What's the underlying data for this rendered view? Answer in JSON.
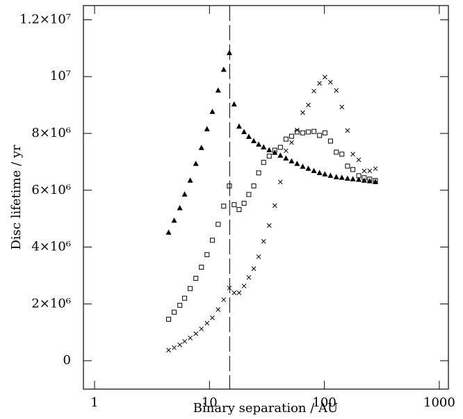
{
  "chart_data": {
    "type": "scatter",
    "xlabel": "Binary separation / AU",
    "ylabel": "Disc lifetime / yr",
    "xscale": "log",
    "xlim": [
      0.8,
      1200
    ],
    "ylim": [
      -1000000,
      12500000
    ],
    "xticks": [
      1,
      10,
      100,
      1000
    ],
    "yticks": [
      0,
      {
        "value": 2000000,
        "label": "2×10⁶"
      },
      {
        "value": 4000000,
        "label": "4×10⁶"
      },
      {
        "value": 6000000,
        "label": "6×10⁶"
      },
      {
        "value": 8000000,
        "label": "8×10⁶"
      },
      {
        "value": 10000000,
        "label": "10⁷"
      },
      {
        "value": 12000000,
        "label": "1.2×10⁷"
      }
    ],
    "vline": 15,
    "x": [
      4.41,
      4.93,
      5.52,
      6.08,
      6.8,
      7.61,
      8.51,
      9.52,
      10.6,
      11.9,
      13.3,
      14.9,
      16.4,
      18.1,
      20.0,
      22.0,
      24.3,
      26.8,
      29.6,
      33.1,
      37.0,
      41.4,
      46.3,
      51.8,
      57.9,
      64.8,
      72.5,
      81.1,
      90.7,
      101,
      113,
      127,
      142,
      159,
      177,
      199,
      222,
      248,
      278
    ],
    "series": [
      {
        "marker": "triangle",
        "color": "#000000",
        "values": [
          4510000,
          4930000,
          5370000,
          5850000,
          6340000,
          6930000,
          7490000,
          8150000,
          8760000,
          9510000,
          10240000,
          10830000,
          9020000,
          8240000,
          8050000,
          7880000,
          7730000,
          7610000,
          7510000,
          7410000,
          7320000,
          7220000,
          7120000,
          7020000,
          6930000,
          6830000,
          6760000,
          6680000,
          6610000,
          6560000,
          6510000,
          6460000,
          6440000,
          6410000,
          6390000,
          6370000,
          6340000,
          6320000,
          6290000
        ]
      },
      {
        "marker": "square",
        "color": "#000000",
        "values": [
          1460000,
          1710000,
          1950000,
          2200000,
          2540000,
          2900000,
          3290000,
          3730000,
          4240000,
          4800000,
          5440000,
          6150000,
          5490000,
          5320000,
          5540000,
          5850000,
          6150000,
          6610000,
          6980000,
          7200000,
          7410000,
          7510000,
          7800000,
          7900000,
          8050000,
          8020000,
          8050000,
          8070000,
          7930000,
          8020000,
          7730000,
          7340000,
          7270000,
          6850000,
          6730000,
          6510000,
          6440000,
          6390000,
          6340000
        ]
      },
      {
        "marker": "cross",
        "color": "#000000",
        "values": [
          370000,
          460000,
          560000,
          680000,
          800000,
          950000,
          1120000,
          1320000,
          1510000,
          1800000,
          2150000,
          2560000,
          2390000,
          2390000,
          2630000,
          2930000,
          3240000,
          3660000,
          4200000,
          4760000,
          5460000,
          6290000,
          7390000,
          7680000,
          8120000,
          8730000,
          9000000,
          9490000,
          9760000,
          9980000,
          9800000,
          9510000,
          8930000,
          8100000,
          7270000,
          7070000,
          6680000,
          6680000,
          6760000
        ]
      }
    ]
  }
}
